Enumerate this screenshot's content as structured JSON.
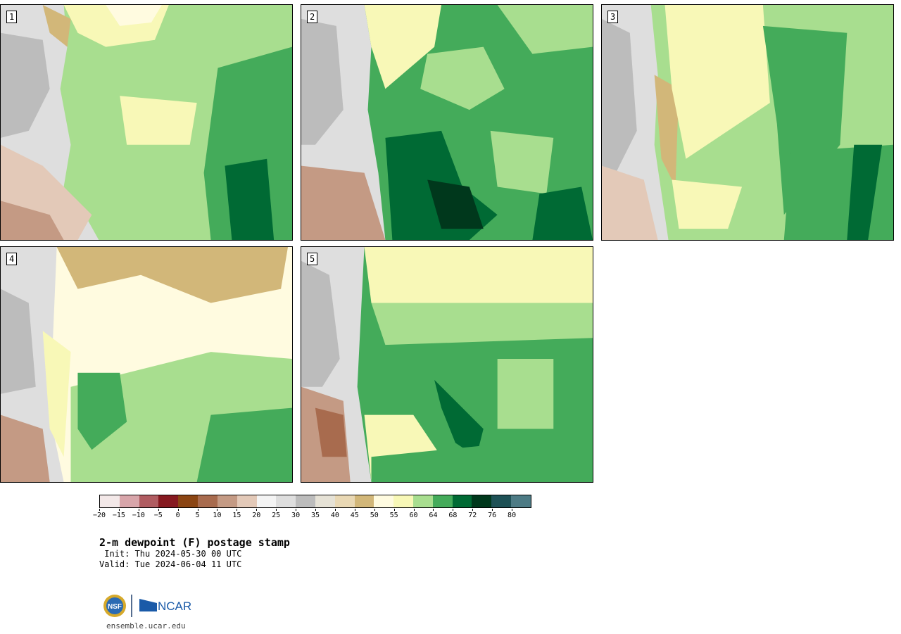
{
  "panels": [
    {
      "id": "1",
      "label": "1"
    },
    {
      "id": "2",
      "label": "2"
    },
    {
      "id": "3",
      "label": "3"
    },
    {
      "id": "4",
      "label": "4"
    },
    {
      "id": "5",
      "label": "5"
    }
  ],
  "colorbar": {
    "colors": [
      "#f3e8e8",
      "#d8a5aa",
      "#b05c61",
      "#861920",
      "#8b4513",
      "#a86b4e",
      "#c49a84",
      "#e3c9b8",
      "#f4f4f4",
      "#dedede",
      "#bcbcbc",
      "#e6e2d6",
      "#e9d8b4",
      "#d2b779",
      "#fffbe0",
      "#f8f8b7",
      "#a8de8f",
      "#44ab5a",
      "#006a34",
      "#00381c",
      "#1e5156",
      "#4d7b85"
    ],
    "tick_labels": [
      "−20",
      "−15",
      "−10",
      "−5",
      "0",
      "5",
      "10",
      "15",
      "20",
      "25",
      "30",
      "35",
      "40",
      "45",
      "50",
      "55",
      "60",
      "64",
      "68",
      "72",
      "76",
      "80"
    ]
  },
  "title": "2-m dewpoint (F) postage stamp",
  "init": " Init: Thu 2024-05-30 00 UTC",
  "valid": "Valid: Tue 2024-06-04 11 UTC",
  "logo": {
    "nsf": "NSF",
    "ncar": "NCAR"
  },
  "site": "ensemble.ucar.edu"
}
